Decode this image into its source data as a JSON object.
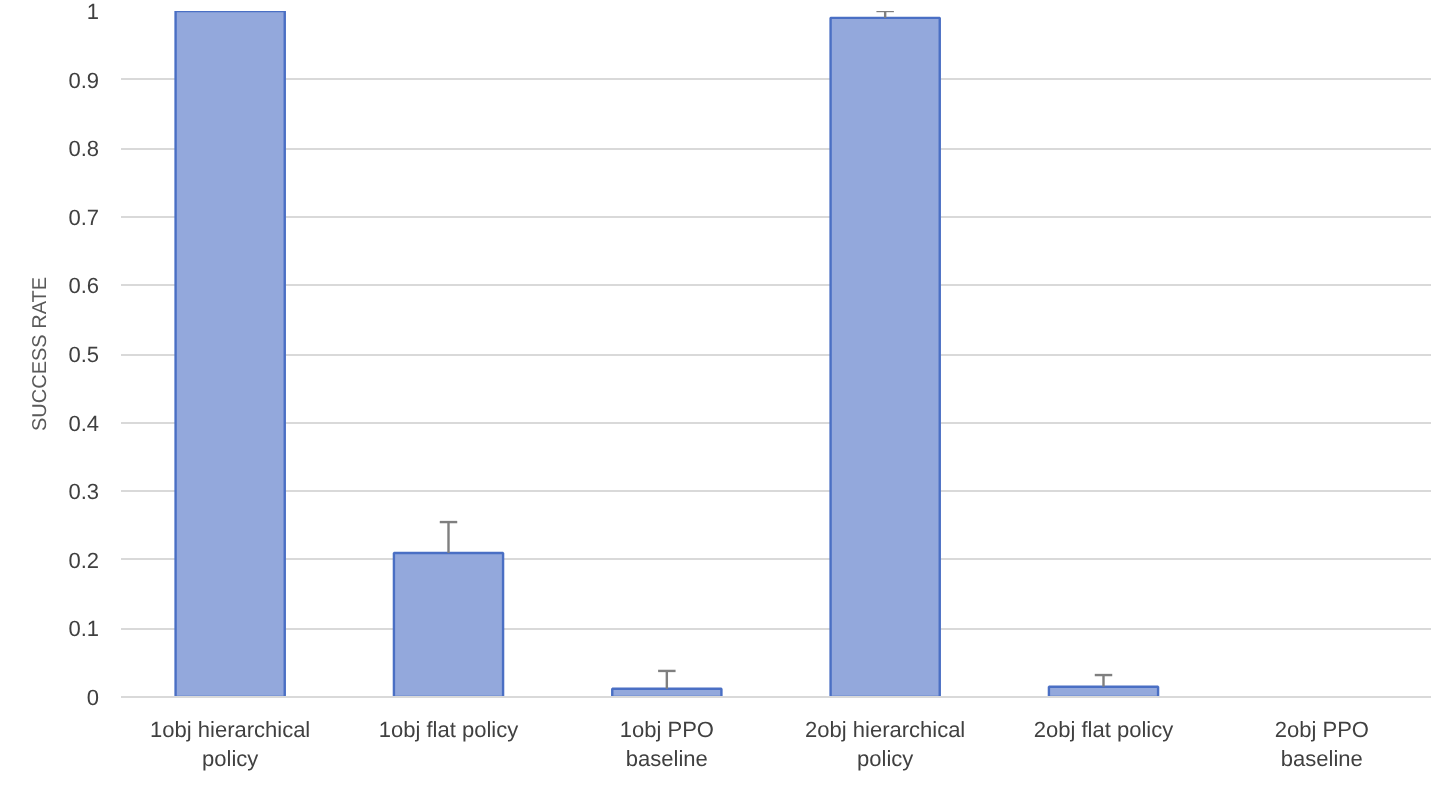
{
  "chart_data": {
    "type": "bar",
    "ylabel": "SUCCESS RATE",
    "categories": [
      "1obj hierarchical policy",
      "1obj flat policy",
      "1obj PPO baseline",
      "2obj hierarchical policy",
      "2obj flat policy",
      "2obj PPO baseline"
    ],
    "values": [
      1.0,
      0.21,
      0.012,
      0.99,
      0.015,
      0
    ],
    "errors": [
      null,
      [
        0.21,
        0.255
      ],
      [
        0.012,
        0.038
      ],
      [
        0.99,
        1.0
      ],
      [
        0.015,
        0.032
      ],
      null
    ],
    "color": "#93a8dc",
    "ylim": [
      0,
      1
    ],
    "yticks": [
      0,
      0.1,
      0.2,
      0.3,
      0.4,
      0.5,
      0.6,
      0.7,
      0.8,
      0.9,
      1
    ],
    "grid": "y"
  }
}
